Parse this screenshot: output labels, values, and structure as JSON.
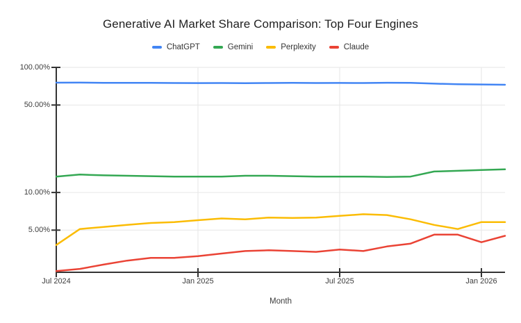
{
  "window": {
    "background": "#ffffff"
  },
  "chart_data": {
    "type": "line",
    "title": "Generative AI Market Share Comparison: Top Four Engines",
    "xlabel": "Month",
    "ylabel": "",
    "legend_position": "top",
    "y_scale": "log",
    "grid": true,
    "axis_color": "#333333",
    "gridline_color": "#e6e6e6",
    "y_axis_range_percent": [
      2.3,
      100
    ],
    "y_ticks": [
      {
        "value": 100,
        "label": "100.00%"
      },
      {
        "value": 50,
        "label": "50.00%"
      },
      {
        "value": 10,
        "label": "10.00%"
      },
      {
        "value": 5,
        "label": "5.00%"
      }
    ],
    "x_categories": [
      "Jul 2024",
      "Aug 2024",
      "Sep 2024",
      "Oct 2024",
      "Nov 2024",
      "Dec 2024",
      "Jan 2025",
      "Feb 2025",
      "Mar 2025",
      "Apr 2025",
      "May 2025",
      "Jun 2025",
      "Jul 2025",
      "Aug 2025",
      "Sep 2025",
      "Oct 2025",
      "Nov 2025",
      "Dec 2025",
      "Jan 2026",
      "Feb 2026"
    ],
    "x_tick_labels": [
      "Jul 2024",
      "Jan 2025",
      "Jul 2025",
      "Jan 2026"
    ],
    "x_tick_indices": [
      0,
      6,
      12,
      18
    ],
    "series": [
      {
        "name": "ChatGPT",
        "color": "#4285F4",
        "values": [
          75.5,
          75.6,
          75.3,
          75.2,
          75.3,
          75.0,
          74.9,
          75.0,
          74.7,
          75.0,
          75.2,
          75.0,
          75.1,
          75.0,
          75.4,
          75.3,
          74.1,
          73.3,
          73.0,
          72.6
        ]
      },
      {
        "name": "Gemini",
        "color": "#34A853",
        "values": [
          13.4,
          13.9,
          13.7,
          13.6,
          13.5,
          13.4,
          13.4,
          13.4,
          13.6,
          13.6,
          13.5,
          13.4,
          13.4,
          13.4,
          13.3,
          13.4,
          14.7,
          14.9,
          15.1,
          15.3
        ]
      },
      {
        "name": "Perplexity",
        "color": "#FBBC04",
        "values": [
          3.8,
          5.1,
          5.3,
          5.5,
          5.7,
          5.8,
          6.0,
          6.2,
          6.1,
          6.3,
          6.25,
          6.3,
          6.5,
          6.7,
          6.6,
          6.1,
          5.5,
          5.1,
          5.8,
          5.8
        ]
      },
      {
        "name": "Claude",
        "color": "#EA4335",
        "values": [
          2.35,
          2.45,
          2.65,
          2.85,
          3.0,
          3.0,
          3.1,
          3.25,
          3.4,
          3.45,
          3.4,
          3.35,
          3.5,
          3.4,
          3.7,
          3.9,
          4.6,
          4.6,
          4.0,
          4.5
        ]
      }
    ]
  }
}
